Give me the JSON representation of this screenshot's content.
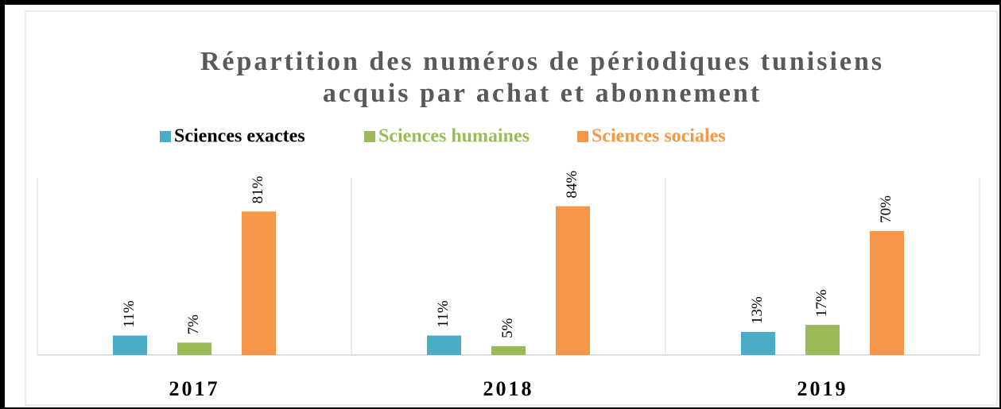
{
  "chart_data": {
    "type": "bar",
    "title": "Répartition des numéros de périodiques tunisiens",
    "subtitle": "acquis par achat et abonnement",
    "categories": [
      "2017",
      "2018",
      "2019"
    ],
    "series": [
      {
        "name": "Sciences exactes",
        "color": "#4bacc6",
        "label_color": "#000000",
        "values": [
          11,
          11,
          13
        ],
        "value_labels": [
          "11%",
          "11%",
          "13%"
        ]
      },
      {
        "name": "Sciences humaines",
        "color": "#9bbb59",
        "label_color": "#9bbb59",
        "values": [
          7,
          5,
          17
        ],
        "value_labels": [
          "7%",
          "5%",
          "17%"
        ]
      },
      {
        "name": "Sciences sociales",
        "color": "#f79646",
        "label_color": "#f79646",
        "values": [
          81,
          84,
          70
        ],
        "value_labels": [
          "81%",
          "84%",
          "70%"
        ]
      }
    ],
    "ylim": [
      0,
      100
    ],
    "legend": "top"
  }
}
